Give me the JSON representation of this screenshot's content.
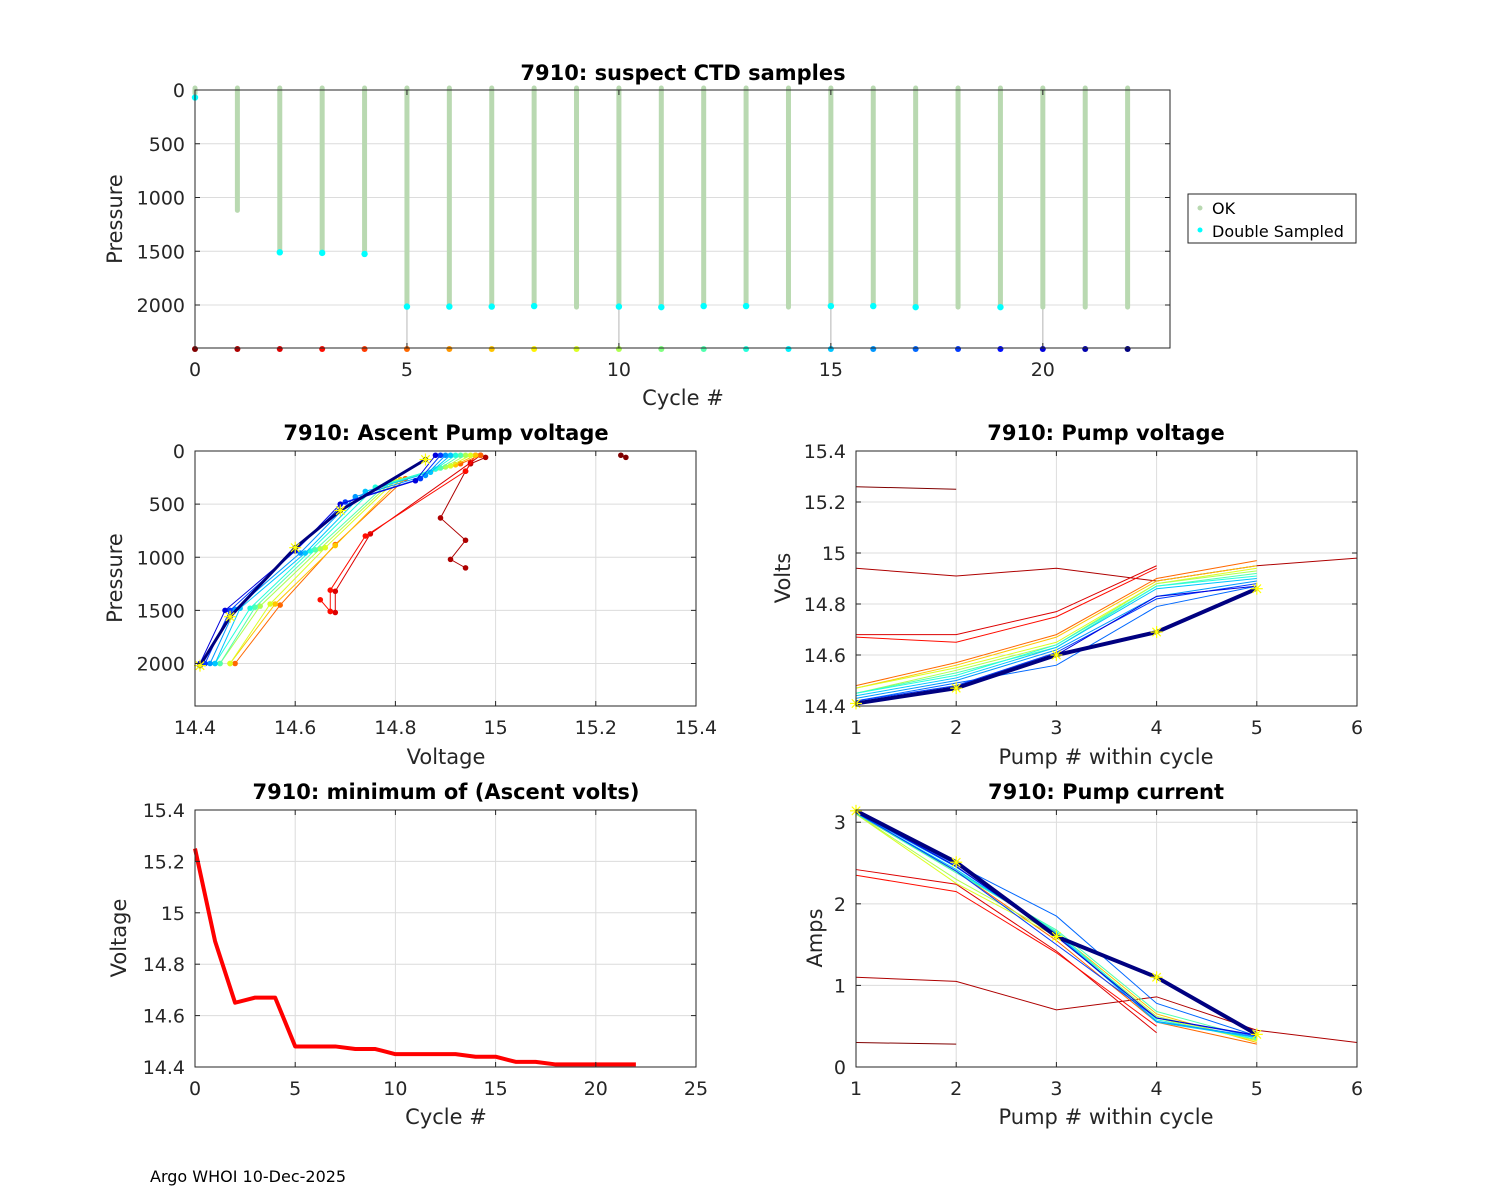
{
  "footer": "Argo WHOI 10-Dec-2025",
  "chart_data": [
    {
      "id": "ctd",
      "type": "scatter",
      "title": "7910: suspect CTD samples",
      "xlabel": "Cycle #",
      "ylabel": "Pressure",
      "xlim": [
        0,
        23
      ],
      "ylim": [
        2400,
        0
      ],
      "xticks": [
        0,
        5,
        10,
        15,
        20
      ],
      "yticks": [
        0,
        500,
        1000,
        1500,
        2000
      ],
      "legend": {
        "placement": "right",
        "entries": [
          {
            "label": "OK",
            "color": "#b9d9b1"
          },
          {
            "label": "Double Sampled",
            "color": "#00ffff"
          }
        ]
      },
      "cycles": [
        0,
        1,
        2,
        3,
        4,
        5,
        6,
        7,
        8,
        9,
        10,
        11,
        12,
        13,
        14,
        15,
        16,
        17,
        18,
        19,
        20,
        21,
        22
      ],
      "ok_max_pressure": [
        30,
        1120,
        1500,
        1510,
        1520,
        2010,
        2010,
        2010,
        2010,
        2020,
        2010,
        2015,
        2010,
        2010,
        2020,
        2010,
        2010,
        2015,
        2020,
        2015,
        2020,
        2020,
        2020
      ],
      "double_sampled_pressure": [
        70,
        null,
        1510,
        1515,
        1525,
        2015,
        2015,
        2015,
        2010,
        null,
        2015,
        2020,
        2010,
        2010,
        null,
        2010,
        2010,
        2020,
        null,
        2020,
        null,
        null,
        null
      ],
      "bottom_marker_pressure": 2400,
      "gray_stems": [
        5,
        10,
        15,
        20
      ]
    },
    {
      "id": "ascent",
      "type": "line",
      "title": "7910: Ascent Pump voltage",
      "xlabel": "Voltage",
      "ylabel": "Pressure",
      "xlim": [
        14.4,
        15.4
      ],
      "ylim": [
        2400,
        0
      ],
      "xticks": [
        14.4,
        14.6,
        14.8,
        15.0,
        15.2,
        15.4
      ],
      "xtick_labels": [
        "14.4",
        "14.6",
        "14.8",
        "15",
        "15.2",
        "15.4"
      ],
      "yticks": [
        0,
        500,
        1000,
        1500,
        2000
      ],
      "series": [
        {
          "cycle": 0,
          "v": [
            15.25,
            15.26
          ],
          "p": [
            40,
            60
          ]
        },
        {
          "cycle": 1,
          "v": [
            14.98,
            14.95,
            14.94,
            14.89,
            14.94,
            14.91,
            14.94
          ],
          "p": [
            60,
            120,
            190,
            630,
            840,
            1020,
            1100
          ]
        },
        {
          "cycle": 2,
          "v": [
            14.97,
            14.95,
            14.75,
            14.68,
            14.68,
            14.67
          ],
          "p": [
            40,
            110,
            780,
            1320,
            1520,
            1510
          ]
        },
        {
          "cycle": 3,
          "v": [
            14.96,
            14.94,
            14.74,
            14.67,
            14.67,
            14.65
          ],
          "p": [
            40,
            190,
            800,
            1310,
            1510,
            1400
          ]
        },
        {
          "cycle": 5,
          "v": [
            14.97,
            14.93,
            14.82,
            14.68,
            14.57,
            14.48
          ],
          "p": [
            40,
            120,
            260,
            880,
            1450,
            2000
          ]
        },
        {
          "cycle": 7,
          "v": [
            14.96,
            14.92,
            14.81,
            14.68,
            14.56,
            14.47
          ],
          "p": [
            40,
            130,
            270,
            890,
            1440,
            2000
          ]
        },
        {
          "cycle": 9,
          "v": [
            14.95,
            14.91,
            14.8,
            14.66,
            14.55,
            14.47
          ],
          "p": [
            40,
            140,
            280,
            910,
            1440,
            2000
          ]
        },
        {
          "cycle": 10,
          "v": [
            14.94,
            14.9,
            14.79,
            14.65,
            14.53,
            14.45
          ],
          "p": [
            40,
            150,
            300,
            920,
            1460,
            2000
          ]
        },
        {
          "cycle": 12,
          "v": [
            14.93,
            14.89,
            14.78,
            14.64,
            14.52,
            14.45
          ],
          "p": [
            40,
            160,
            320,
            930,
            1470,
            2000
          ]
        },
        {
          "cycle": 13,
          "v": [
            14.92,
            14.88,
            14.76,
            14.63,
            14.51,
            14.44
          ],
          "p": [
            40,
            170,
            340,
            940,
            1480,
            2000
          ]
        },
        {
          "cycle": 15,
          "v": [
            14.91,
            14.87,
            14.74,
            14.62,
            14.49,
            14.44
          ],
          "p": [
            40,
            200,
            380,
            960,
            1480,
            2000
          ]
        },
        {
          "cycle": 16,
          "v": [
            14.9,
            14.86,
            14.72,
            14.61,
            14.48,
            14.43
          ],
          "p": [
            40,
            230,
            430,
            960,
            1490,
            2000
          ]
        },
        {
          "cycle": 18,
          "v": [
            14.89,
            14.85,
            14.7,
            14.6,
            14.47,
            14.42
          ],
          "p": [
            40,
            260,
            480,
            940,
            1500,
            2000
          ]
        },
        {
          "cycle": 20,
          "v": [
            14.88,
            14.84,
            14.69,
            14.6,
            14.46,
            14.41
          ],
          "p": [
            40,
            280,
            500,
            940,
            1500,
            2000
          ]
        },
        {
          "cycle": 22,
          "v": [
            14.86,
            14.69,
            14.6,
            14.47,
            14.41
          ],
          "p": [
            80,
            560,
            910,
            1560,
            2020
          ]
        }
      ],
      "highlight_markers": {
        "v": [
          14.86,
          14.69,
          14.6,
          14.47,
          14.41
        ],
        "p": [
          80,
          560,
          910,
          1560,
          2020
        ]
      }
    },
    {
      "id": "pumpvolt",
      "type": "line",
      "title": "7910: Pump voltage",
      "xlabel": "Pump # within cycle",
      "ylabel": "Volts",
      "xlim": [
        1,
        6
      ],
      "ylim": [
        14.4,
        15.4
      ],
      "xticks": [
        1,
        2,
        3,
        4,
        5,
        6
      ],
      "yticks": [
        14.4,
        14.6,
        14.8,
        15.0,
        15.2,
        15.4
      ],
      "ytick_labels": [
        "14.4",
        "14.6",
        "14.8",
        "15",
        "15.2",
        "15.4"
      ],
      "series": [
        {
          "cycle": 0,
          "y": [
            15.26,
            15.25
          ]
        },
        {
          "cycle": 1,
          "y": [
            14.94,
            14.91,
            14.94,
            14.89,
            14.95,
            14.98
          ]
        },
        {
          "cycle": 2,
          "y": [
            14.68,
            14.68,
            14.77,
            14.95
          ]
        },
        {
          "cycle": 3,
          "y": [
            14.67,
            14.65,
            14.75,
            14.94
          ]
        },
        {
          "cycle": 5,
          "y": [
            14.48,
            14.57,
            14.68,
            14.9,
            14.97
          ]
        },
        {
          "cycle": 7,
          "y": [
            14.47,
            14.56,
            14.67,
            14.89,
            14.95
          ]
        },
        {
          "cycle": 9,
          "y": [
            14.47,
            14.55,
            14.65,
            14.88,
            14.94
          ]
        },
        {
          "cycle": 10,
          "y": [
            14.45,
            14.54,
            14.64,
            14.88,
            14.93
          ]
        },
        {
          "cycle": 12,
          "y": [
            14.45,
            14.53,
            14.63,
            14.87,
            14.92
          ]
        },
        {
          "cycle": 13,
          "y": [
            14.45,
            14.52,
            14.64,
            14.87,
            14.91
          ]
        },
        {
          "cycle": 15,
          "y": [
            14.44,
            14.51,
            14.63,
            14.86,
            14.9
          ]
        },
        {
          "cycle": 16,
          "y": [
            14.43,
            14.5,
            14.62,
            14.83,
            14.89
          ]
        },
        {
          "cycle": 17,
          "y": [
            14.42,
            14.49,
            14.56,
            14.79,
            14.87
          ]
        },
        {
          "cycle": 18,
          "y": [
            14.42,
            14.48,
            14.61,
            14.82,
            14.88
          ]
        },
        {
          "cycle": 20,
          "y": [
            14.41,
            14.47,
            14.6,
            14.83,
            14.87
          ]
        },
        {
          "cycle": 22,
          "y": [
            14.41,
            14.47,
            14.6,
            14.69,
            14.86
          ]
        }
      ],
      "highlight_markers": [
        14.41,
        14.47,
        14.6,
        14.69,
        14.86
      ]
    },
    {
      "id": "minvolt",
      "type": "line",
      "title": "7910: minimum of (Ascent volts)",
      "xlabel": "Cycle #",
      "ylabel": "Voltage",
      "xlim": [
        0,
        25
      ],
      "ylim": [
        14.4,
        15.4
      ],
      "xticks": [
        0,
        5,
        10,
        15,
        20,
        25
      ],
      "yticks": [
        14.4,
        14.6,
        14.8,
        15.0,
        15.2,
        15.4
      ],
      "ytick_labels": [
        "14.4",
        "14.6",
        "14.8",
        "15",
        "15.2",
        "15.4"
      ],
      "x": [
        0,
        1,
        2,
        3,
        4,
        5,
        6,
        7,
        8,
        9,
        10,
        11,
        12,
        13,
        14,
        15,
        16,
        17,
        18,
        19,
        20,
        21,
        22
      ],
      "y": [
        15.25,
        14.89,
        14.65,
        14.67,
        14.67,
        14.48,
        14.48,
        14.48,
        14.47,
        14.47,
        14.45,
        14.45,
        14.45,
        14.45,
        14.44,
        14.44,
        14.42,
        14.42,
        14.41,
        14.41,
        14.41,
        14.41,
        14.41
      ],
      "color": "#ff0000"
    },
    {
      "id": "pumpcur",
      "type": "line",
      "title": "7910: Pump current",
      "xlabel": "Pump # within cycle",
      "ylabel": "Amps",
      "xlim": [
        1,
        6
      ],
      "ylim": [
        0,
        3.15
      ],
      "xticks": [
        1,
        2,
        3,
        4,
        5,
        6
      ],
      "yticks": [
        0,
        1,
        2,
        3
      ],
      "series": [
        {
          "cycle": 0,
          "y": [
            0.3,
            0.28
          ]
        },
        {
          "cycle": 1,
          "y": [
            1.1,
            1.05,
            0.7,
            0.86,
            0.45,
            0.3
          ]
        },
        {
          "cycle": 2,
          "y": [
            2.42,
            2.24,
            1.42,
            0.42
          ]
        },
        {
          "cycle": 3,
          "y": [
            2.35,
            2.15,
            1.4,
            0.5
          ]
        },
        {
          "cycle": 5,
          "y": [
            3.1,
            2.4,
            1.55,
            0.55,
            0.28
          ]
        },
        {
          "cycle": 7,
          "y": [
            3.1,
            2.4,
            1.65,
            0.65,
            0.3
          ]
        },
        {
          "cycle": 9,
          "y": [
            3.1,
            2.25,
            1.6,
            0.6,
            0.32
          ]
        },
        {
          "cycle": 10,
          "y": [
            3.1,
            2.3,
            1.62,
            0.62,
            0.33
          ]
        },
        {
          "cycle": 12,
          "y": [
            3.11,
            2.38,
            1.68,
            0.68,
            0.35
          ]
        },
        {
          "cycle": 13,
          "y": [
            3.11,
            2.4,
            1.66,
            0.58,
            0.34
          ]
        },
        {
          "cycle": 15,
          "y": [
            3.11,
            2.42,
            1.64,
            0.55,
            0.36
          ]
        },
        {
          "cycle": 16,
          "y": [
            3.12,
            2.45,
            1.62,
            0.56,
            0.37
          ]
        },
        {
          "cycle": 17,
          "y": [
            3.12,
            2.48,
            1.85,
            0.78,
            0.38
          ]
        },
        {
          "cycle": 18,
          "y": [
            3.12,
            2.4,
            1.5,
            0.6,
            0.38
          ]
        },
        {
          "cycle": 20,
          "y": [
            3.13,
            2.46,
            1.6,
            0.6,
            0.39
          ]
        },
        {
          "cycle": 22,
          "y": [
            3.14,
            2.51,
            1.6,
            1.1,
            0.4
          ]
        }
      ],
      "highlight_markers": [
        3.14,
        2.51,
        1.6,
        1.1,
        0.4
      ]
    }
  ]
}
